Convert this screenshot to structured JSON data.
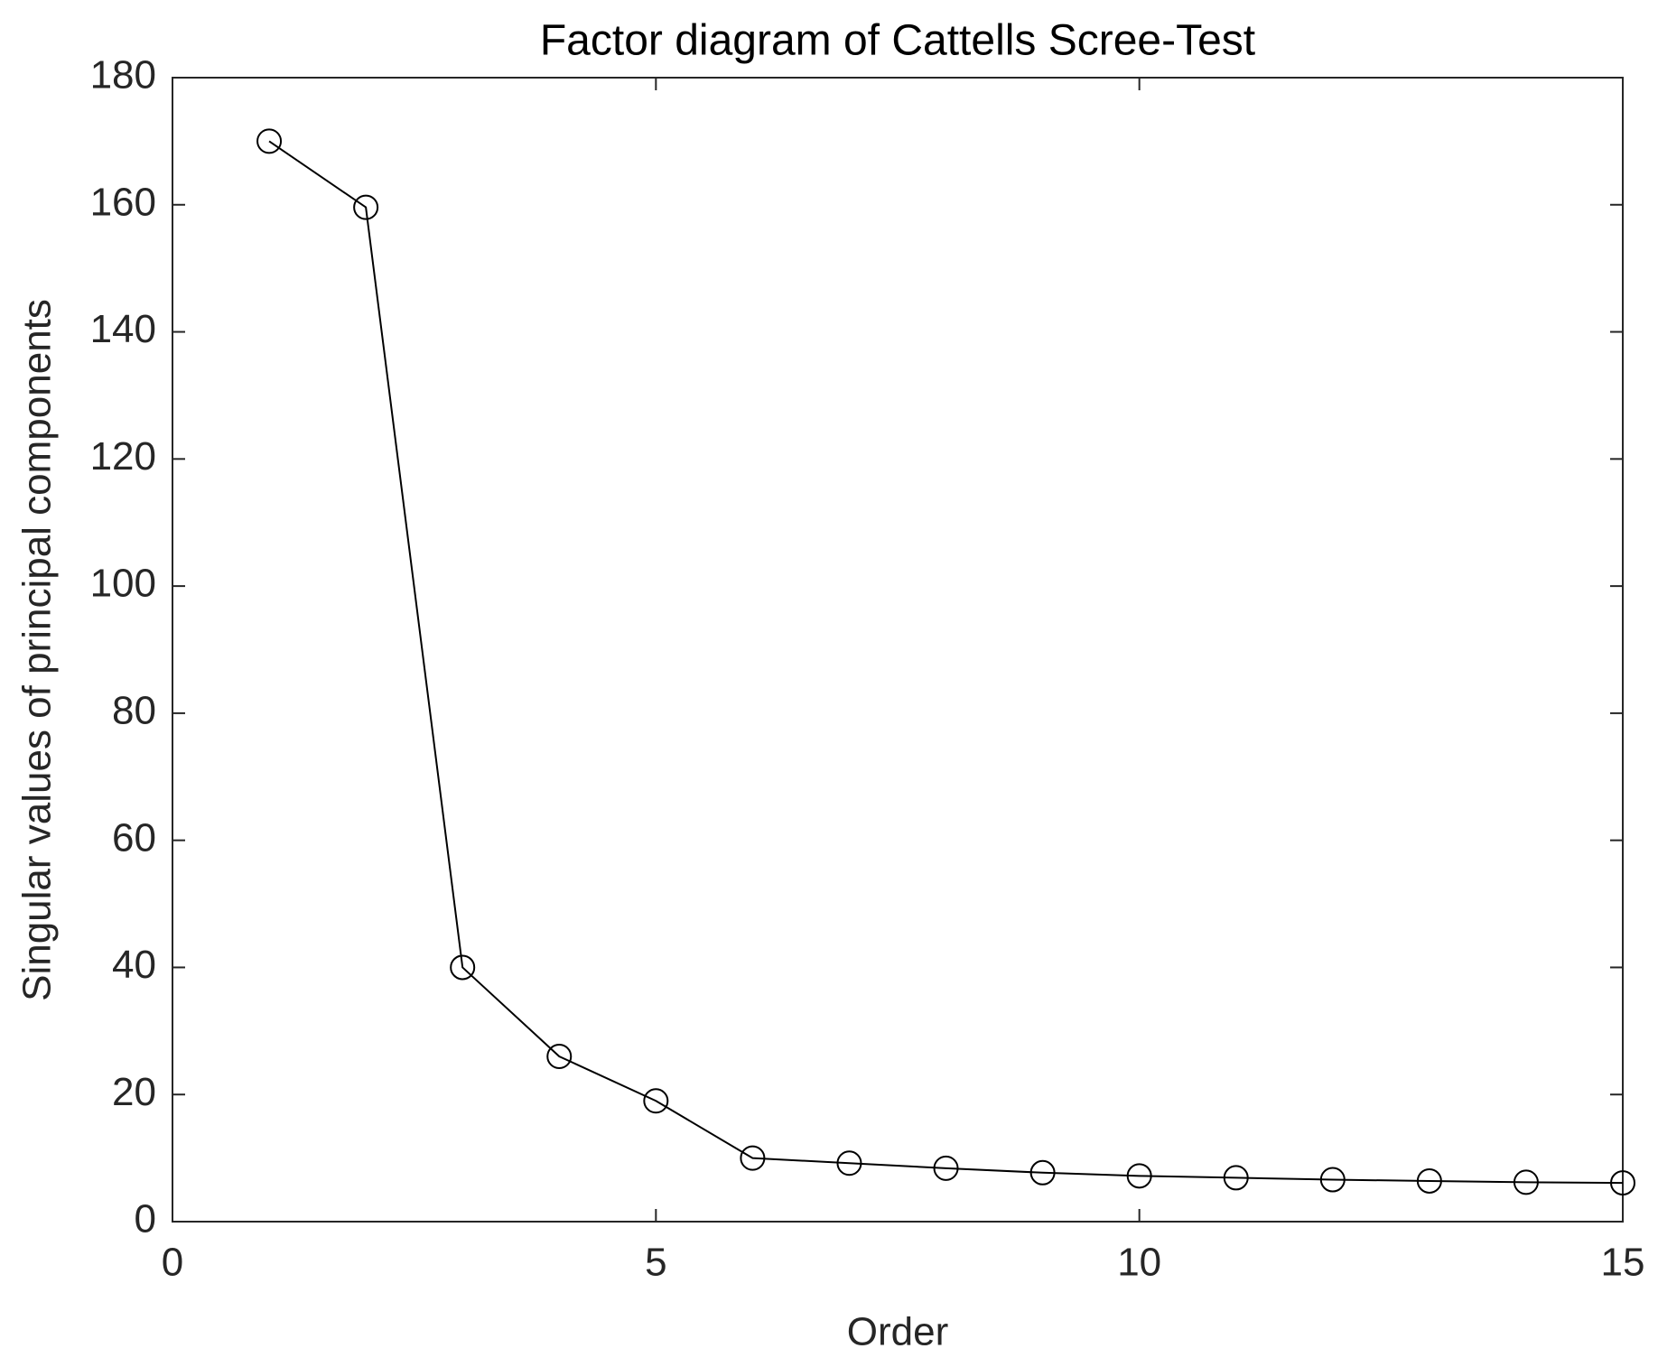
{
  "chart_data": {
    "type": "line",
    "title": "Factor diagram of Cattells Scree-Test",
    "x_label": "Order",
    "y_label": "Singular values of principal components",
    "x": [
      1,
      2,
      3,
      4,
      5,
      6,
      7,
      8,
      9,
      10,
      11,
      12,
      13,
      14,
      15
    ],
    "series": [
      {
        "color": "#000000",
        "marker": "circle",
        "values": [
          170,
          159.6,
          40,
          26,
          19,
          10,
          9.2,
          8.4,
          7.7,
          7.2,
          6.9,
          6.6,
          6.4,
          6.2,
          6.1
        ]
      }
    ],
    "xlim": [
      0,
      15
    ],
    "xticks": [
      0,
      5,
      10,
      15
    ],
    "ylim": [
      0,
      180
    ],
    "yticks": [
      0,
      20,
      40,
      60,
      80,
      100,
      120,
      140,
      160,
      180
    ],
    "grid": false
  }
}
